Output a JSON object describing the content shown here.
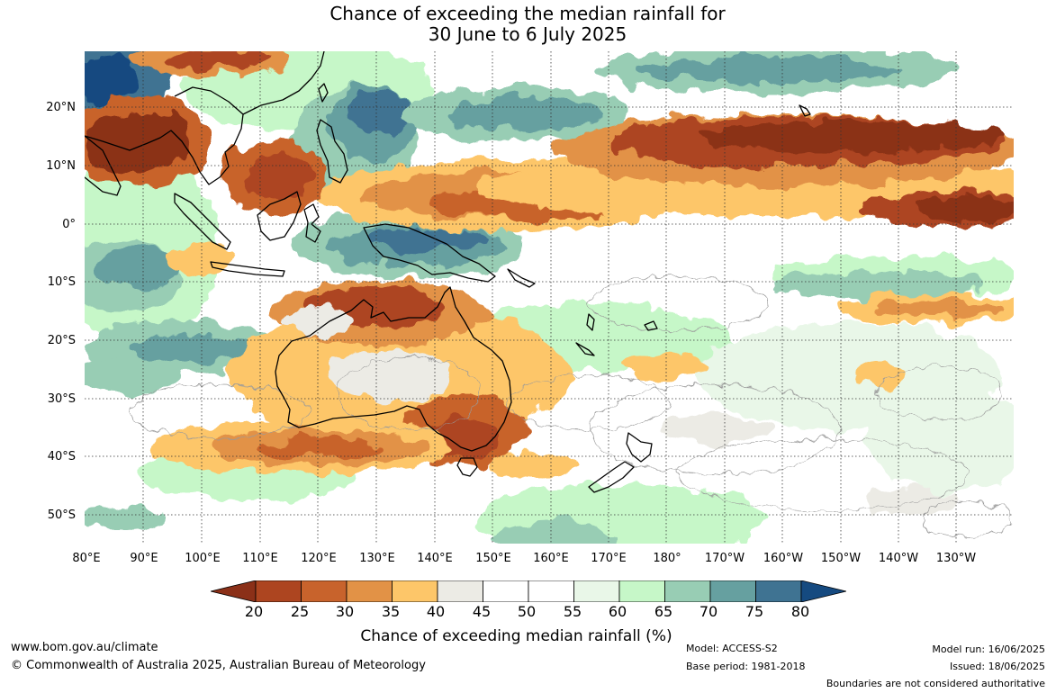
{
  "title": {
    "line1": "Chance of exceeding the median rainfall for",
    "line2": "30 June to 6 July 2025"
  },
  "map": {
    "lat_labels": [
      "20°N",
      "10°N",
      "0°",
      "10°S",
      "20°S",
      "30°S",
      "40°S",
      "50°S"
    ],
    "lon_labels": [
      "80°E",
      "90°E",
      "100°E",
      "110°E",
      "120°E",
      "130°E",
      "140°E",
      "150°E",
      "160°E",
      "170°E",
      "180°",
      "170°W",
      "160°W",
      "150°W",
      "140°W",
      "130°W"
    ]
  },
  "legend": {
    "ticks": [
      "20",
      "25",
      "30",
      "35",
      "40",
      "45",
      "50",
      "55",
      "60",
      "65",
      "70",
      "75",
      "80"
    ],
    "colors": [
      "#8b3018",
      "#ad4520",
      "#c8632c",
      "#e29246",
      "#fdc669",
      "#ecebe5",
      "#ffffff",
      "#ffffff",
      "#e9f7e8",
      "#c6f7c8",
      "#98cdb4",
      "#66a0a0",
      "#3f7392",
      "#154a80"
    ],
    "label": "Chance of exceeding median rainfall (%)"
  },
  "footer": {
    "website": "www.bom.gov.au/climate",
    "copyright": "© Commonwealth of Australia 2025, Australian Bureau of Meteorology",
    "model": "Model: ACCESS-S2",
    "base_period": "Base period: 1981-2018",
    "model_run": "Model run: 16/06/2025",
    "issued": "Issued: 18/06/2025",
    "disclaimer": "Boundaries are not considered authoritative"
  }
}
